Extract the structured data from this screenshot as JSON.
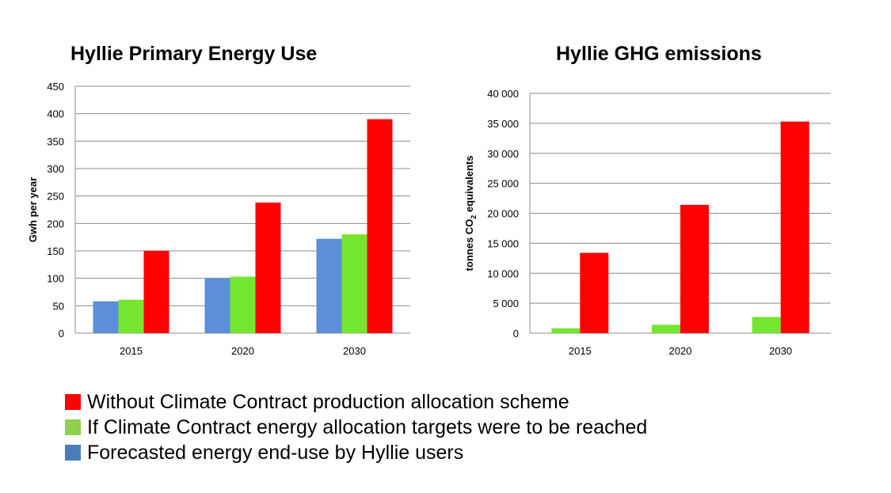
{
  "colors": {
    "without": "#ff0000",
    "targets": "#75e62f",
    "forecast": "#5b8fd6",
    "legend_targets": "#8fd14f",
    "legend_forecast": "#4a7ebb",
    "grid": "#8c8c8c"
  },
  "legend": {
    "items": [
      {
        "label": "Without Climate Contract production allocation scheme",
        "color": "#ff0000"
      },
      {
        "label": "If Climate Contract energy allocation targets were to be reached",
        "color": "#8fd14f"
      },
      {
        "label": "Forecasted energy end-use by Hyllie users",
        "color": "#4a7ebb"
      }
    ]
  },
  "chart_data": [
    {
      "type": "bar",
      "title": "Hyllie Primary Energy Use",
      "ylabel": "Gwh per year",
      "categories": [
        "2015",
        "2020",
        "2030"
      ],
      "ylim": [
        0,
        450
      ],
      "yticks": [
        0,
        50,
        100,
        150,
        200,
        250,
        300,
        350,
        400,
        450
      ],
      "ytick_labels": [
        "0",
        "50",
        "100",
        "150",
        "200",
        "250",
        "300",
        "350",
        "400",
        "450"
      ],
      "grid": true,
      "series": [
        {
          "values": [
            58,
            100,
            172
          ],
          "color": "#5b8fd6"
        },
        {
          "values": [
            61,
            103,
            180
          ],
          "color": "#75e62f"
        },
        {
          "values": [
            150,
            238,
            390
          ],
          "color": "#ff0000"
        }
      ]
    },
    {
      "type": "bar",
      "title": "Hyllie GHG emissions",
      "ylabel": "tonnes CO2 equivalents",
      "categories": [
        "2015",
        "2020",
        "2030"
      ],
      "ylim": [
        0,
        40000
      ],
      "yticks": [
        0,
        5000,
        10000,
        15000,
        20000,
        25000,
        30000,
        35000,
        40000
      ],
      "ytick_labels": [
        "0",
        "5 000",
        "10 000",
        "15 000",
        "20 000",
        "25 000",
        "30 000",
        "35 000",
        "40 000"
      ],
      "grid": true,
      "series": [
        {
          "values": [
            800,
            1400,
            2700
          ],
          "color": "#75e62f"
        },
        {
          "values": [
            13400,
            21400,
            35300
          ],
          "color": "#ff0000"
        }
      ]
    }
  ]
}
